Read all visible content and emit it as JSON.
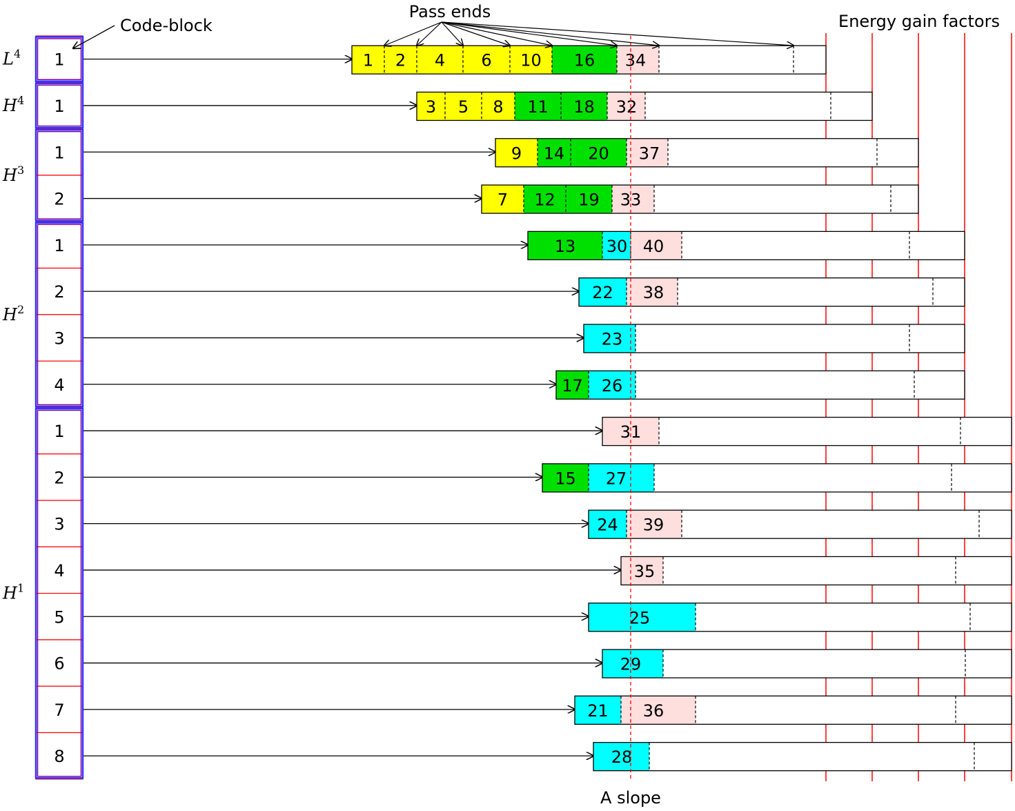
{
  "labels": {
    "code_block": "Code-block",
    "pass_ends": "Pass ends",
    "energy_gain_factors": "Energy gain factors",
    "a_slope": "A slope"
  },
  "colors": {
    "yellow": "#ffff00",
    "green": "#00e000",
    "cyan": "#00ffff",
    "pink": "#ffdede",
    "red": "#ff0000",
    "blue": "#3333ff",
    "purple": "#8000a0"
  },
  "subbands": [
    {
      "name": "L",
      "sup": "4",
      "blocks": [
        {
          "label": "1",
          "segments": [
            {
              "n": "1",
              "c": "yellow"
            },
            {
              "n": "2",
              "c": "yellow"
            },
            {
              "n": "4",
              "c": "yellow"
            },
            {
              "n": "6",
              "c": "yellow"
            },
            {
              "n": "10",
              "c": "yellow"
            },
            {
              "n": "16",
              "c": "green"
            },
            {
              "n": "34",
              "c": "pink"
            },
            {
              "n": "",
              "c": "white"
            },
            {
              "n": "",
              "c": "white"
            }
          ]
        }
      ]
    },
    {
      "name": "H",
      "sup": "4",
      "blocks": [
        {
          "label": "1",
          "segments": [
            {
              "n": "3",
              "c": "yellow"
            },
            {
              "n": "5",
              "c": "yellow"
            },
            {
              "n": "8",
              "c": "yellow"
            },
            {
              "n": "11",
              "c": "green"
            },
            {
              "n": "18",
              "c": "green"
            },
            {
              "n": "32",
              "c": "pink"
            },
            {
              "n": "",
              "c": "white"
            },
            {
              "n": "",
              "c": "white"
            }
          ]
        }
      ]
    },
    {
      "name": "H",
      "sup": "3",
      "blocks": [
        {
          "label": "1",
          "segments": [
            {
              "n": "9",
              "c": "yellow"
            },
            {
              "n": "14",
              "c": "green"
            },
            {
              "n": "20",
              "c": "green"
            },
            {
              "n": "37",
              "c": "pink"
            },
            {
              "n": "",
              "c": "white"
            },
            {
              "n": "",
              "c": "white"
            }
          ]
        },
        {
          "label": "2",
          "segments": [
            {
              "n": "7",
              "c": "yellow"
            },
            {
              "n": "12",
              "c": "green"
            },
            {
              "n": "19",
              "c": "green"
            },
            {
              "n": "33",
              "c": "pink"
            },
            {
              "n": "",
              "c": "white"
            },
            {
              "n": "",
              "c": "white"
            }
          ]
        }
      ]
    },
    {
      "name": "H",
      "sup": "2",
      "blocks": [
        {
          "label": "1",
          "segments": [
            {
              "n": "13",
              "c": "green"
            },
            {
              "n": "30",
              "c": "cyan"
            },
            {
              "n": "40",
              "c": "pink"
            },
            {
              "n": "",
              "c": "white"
            },
            {
              "n": "",
              "c": "white"
            }
          ]
        },
        {
          "label": "2",
          "segments": [
            {
              "n": "22",
              "c": "cyan"
            },
            {
              "n": "38",
              "c": "pink"
            },
            {
              "n": "",
              "c": "white"
            },
            {
              "n": "",
              "c": "white"
            }
          ]
        },
        {
          "label": "3",
          "segments": [
            {
              "n": "23",
              "c": "cyan"
            },
            {
              "n": "",
              "c": "white"
            },
            {
              "n": "",
              "c": "white"
            }
          ]
        },
        {
          "label": "4",
          "segments": [
            {
              "n": "17",
              "c": "green"
            },
            {
              "n": "26",
              "c": "cyan"
            },
            {
              "n": "",
              "c": "white"
            },
            {
              "n": "",
              "c": "white"
            }
          ]
        }
      ]
    },
    {
      "name": "H",
      "sup": "1",
      "blocks": [
        {
          "label": "1",
          "segments": [
            {
              "n": "31",
              "c": "pink"
            },
            {
              "n": "",
              "c": "white"
            },
            {
              "n": "",
              "c": "white"
            }
          ]
        },
        {
          "label": "2",
          "segments": [
            {
              "n": "15",
              "c": "green"
            },
            {
              "n": "27",
              "c": "cyan"
            },
            {
              "n": "",
              "c": "white"
            },
            {
              "n": "",
              "c": "white"
            }
          ]
        },
        {
          "label": "3",
          "segments": [
            {
              "n": "24",
              "c": "cyan"
            },
            {
              "n": "39",
              "c": "pink"
            },
            {
              "n": "",
              "c": "white"
            },
            {
              "n": "",
              "c": "white"
            }
          ]
        },
        {
          "label": "4",
          "segments": [
            {
              "n": "35",
              "c": "pink"
            },
            {
              "n": "",
              "c": "white"
            },
            {
              "n": "",
              "c": "white"
            }
          ]
        },
        {
          "label": "5",
          "segments": [
            {
              "n": "25",
              "c": "cyan"
            },
            {
              "n": "",
              "c": "white"
            },
            {
              "n": "",
              "c": "white"
            }
          ]
        },
        {
          "label": "6",
          "segments": [
            {
              "n": "29",
              "c": "cyan"
            },
            {
              "n": "",
              "c": "white"
            },
            {
              "n": "",
              "c": "white"
            }
          ]
        },
        {
          "label": "7",
          "segments": [
            {
              "n": "21",
              "c": "cyan"
            },
            {
              "n": "36",
              "c": "pink"
            },
            {
              "n": "",
              "c": "white"
            },
            {
              "n": "",
              "c": "white"
            }
          ]
        },
        {
          "label": "8",
          "segments": [
            {
              "n": "28",
              "c": "cyan"
            },
            {
              "n": "",
              "c": "white"
            },
            {
              "n": "",
              "c": "white"
            }
          ]
        }
      ]
    }
  ]
}
